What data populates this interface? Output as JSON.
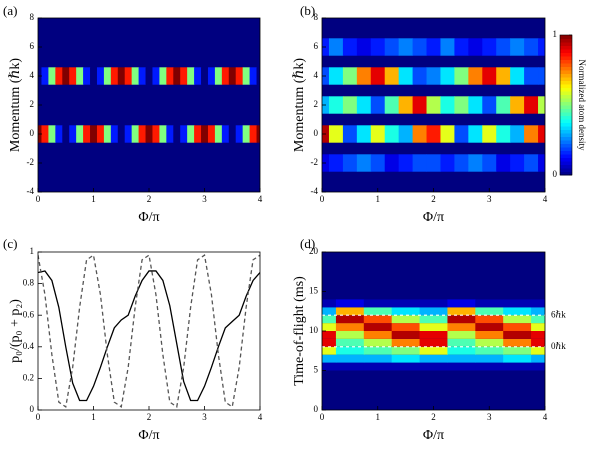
{
  "chart_data": [
    {
      "type": "heatmap",
      "panel_label": "(a)",
      "x_label": "Φ/π",
      "y_label": "Momentum (ℏk)",
      "xlim": [
        0,
        4
      ],
      "xticks": [
        0,
        1,
        2,
        3,
        4
      ],
      "ylim": [
        -4,
        8
      ],
      "yticks": [
        -4,
        -2,
        0,
        2,
        4,
        6,
        8
      ],
      "x": [
        0,
        0.125,
        0.25,
        0.375,
        0.5,
        0.625,
        0.75,
        0.875,
        1,
        1.125,
        1.25,
        1.375,
        1.5,
        1.625,
        1.75,
        1.875,
        2,
        2.125,
        2.25,
        2.375,
        2.5,
        2.625,
        2.75,
        2.875,
        3,
        3.125,
        3.25,
        3.375,
        3.5,
        3.625,
        3.75,
        3.875,
        4
      ],
      "y": [
        0,
        4
      ],
      "z": [
        [
          1,
          0.85,
          0.5,
          0.15,
          0,
          0.15,
          0.5,
          0.85,
          1,
          0.85,
          0.5,
          0.15,
          0,
          0.15,
          0.5,
          0.85,
          1,
          0.85,
          0.5,
          0.15,
          0,
          0.15,
          0.5,
          0.85,
          1,
          0.85,
          0.5,
          0.15,
          0,
          0.15,
          0.5,
          0.85,
          1
        ],
        [
          0,
          0.15,
          0.5,
          0.85,
          1,
          0.85,
          0.5,
          0.15,
          0,
          0.15,
          0.5,
          0.85,
          1,
          0.85,
          0.5,
          0.15,
          0,
          0.15,
          0.5,
          0.85,
          1,
          0.85,
          0.5,
          0.15,
          0,
          0.15,
          0.5,
          0.85,
          1,
          0.85,
          0.5,
          0.15,
          0
        ]
      ],
      "zlim": [
        0,
        1
      ],
      "colormap": "jet"
    },
    {
      "type": "heatmap",
      "panel_label": "(b)",
      "x_label": "Φ/π",
      "y_label": "Momentum (ℏk)",
      "xlim": [
        0,
        4
      ],
      "xticks": [
        0,
        1,
        2,
        3,
        4
      ],
      "ylim": [
        -4,
        8
      ],
      "yticks": [
        -4,
        -2,
        0,
        2,
        4,
        6,
        8
      ],
      "x": [
        0,
        0.25,
        0.5,
        0.75,
        1,
        1.25,
        1.5,
        1.75,
        2,
        2.25,
        2.5,
        2.75,
        3,
        3.25,
        3.5,
        3.75,
        4
      ],
      "y": [
        -2,
        0,
        2,
        4,
        6
      ],
      "z": [
        [
          0.1,
          0.15,
          0.2,
          0.25,
          0.2,
          0.1,
          0.15,
          0.2,
          0.2,
          0.15,
          0.2,
          0.25,
          0.2,
          0.1,
          0.15,
          0.2,
          0.1
        ],
        [
          0.95,
          0.6,
          0.2,
          0.35,
          0.6,
          0.4,
          0.3,
          0.75,
          0.85,
          0.6,
          0.2,
          0.35,
          0.6,
          0.4,
          0.3,
          0.75,
          0.9
        ],
        [
          0.3,
          0.4,
          0.5,
          0.35,
          0.2,
          0.45,
          0.7,
          0.9,
          0.55,
          0.4,
          0.5,
          0.35,
          0.2,
          0.45,
          0.7,
          0.9,
          0.55
        ],
        [
          0.2,
          0.35,
          0.5,
          0.75,
          0.9,
          0.7,
          0.35,
          0.2,
          0.25,
          0.35,
          0.5,
          0.75,
          0.9,
          0.7,
          0.35,
          0.2,
          0.2
        ],
        [
          0.15,
          0.25,
          0.15,
          0.1,
          0.15,
          0.2,
          0.25,
          0.2,
          0.15,
          0.25,
          0.15,
          0.1,
          0.15,
          0.2,
          0.25,
          0.2,
          0.15
        ]
      ],
      "zlim": [
        0,
        1
      ],
      "colormap": "jet",
      "colorbar": {
        "label": "Normalized atom density",
        "lim": [
          0,
          1
        ],
        "ticks": [
          0,
          1
        ]
      }
    },
    {
      "type": "line",
      "panel_label": "(c)",
      "x_label": "Φ/π",
      "y_label": "p₀/(p₀ + p₂)",
      "xlim": [
        0,
        4
      ],
      "xticks": [
        0,
        1,
        2,
        3,
        4
      ],
      "ylim": [
        0,
        1
      ],
      "yticks": [
        0,
        0.2,
        0.4,
        0.6,
        0.8,
        1
      ],
      "x": [
        0,
        0.125,
        0.25,
        0.375,
        0.5,
        0.625,
        0.75,
        0.875,
        1,
        1.125,
        1.25,
        1.375,
        1.5,
        1.625,
        1.75,
        1.875,
        2,
        2.125,
        2.25,
        2.375,
        2.5,
        2.625,
        2.75,
        2.875,
        3,
        3.125,
        3.25,
        3.375,
        3.5,
        3.625,
        3.75,
        3.875,
        4
      ],
      "series": [
        {
          "color": "#000000",
          "style": "solid",
          "values": [
            0.87,
            0.88,
            0.82,
            0.65,
            0.4,
            0.17,
            0.06,
            0.06,
            0.15,
            0.27,
            0.4,
            0.52,
            0.57,
            0.6,
            0.72,
            0.82,
            0.88,
            0.88,
            0.82,
            0.66,
            0.42,
            0.18,
            0.06,
            0.06,
            0.15,
            0.27,
            0.4,
            0.52,
            0.56,
            0.6,
            0.72,
            0.82,
            0.87
          ]
        },
        {
          "color": "#555555",
          "style": "dashed",
          "values": [
            0.98,
            0.73,
            0.35,
            0.05,
            0.02,
            0.27,
            0.65,
            0.95,
            0.98,
            0.73,
            0.35,
            0.05,
            0.02,
            0.27,
            0.65,
            0.95,
            0.98,
            0.73,
            0.35,
            0.05,
            0.02,
            0.27,
            0.65,
            0.95,
            0.98,
            0.73,
            0.35,
            0.05,
            0.02,
            0.27,
            0.65,
            0.95,
            0.98
          ]
        }
      ]
    },
    {
      "type": "heatmap",
      "panel_label": "(d)",
      "x_label": "Φ/π",
      "y_label": "Time-of-flight (ms)",
      "xlim": [
        0,
        4
      ],
      "xticks": [
        0,
        1,
        2,
        3,
        4
      ],
      "ylim": [
        0,
        20
      ],
      "yticks": [
        0,
        5,
        10,
        15,
        20
      ],
      "x": [
        0,
        0.5,
        1,
        1.5,
        2,
        2.5,
        3,
        3.5,
        4
      ],
      "y": [
        5.5,
        6.5,
        7.5,
        8.5,
        9.5,
        10.5,
        11.5,
        12.5,
        13.5
      ],
      "z": [
        [
          0.05,
          0.05,
          0.05,
          0.05,
          0.05,
          0.05,
          0.05,
          0.05,
          0.05
        ],
        [
          0.3,
          0.3,
          0.3,
          0.35,
          0.3,
          0.3,
          0.3,
          0.35,
          0.3
        ],
        [
          0.6,
          0.4,
          0.45,
          0.5,
          0.6,
          0.4,
          0.45,
          0.5,
          0.6
        ],
        [
          0.9,
          0.45,
          0.55,
          0.75,
          0.9,
          0.45,
          0.55,
          0.75,
          0.9
        ],
        [
          0.9,
          0.55,
          0.75,
          0.95,
          0.9,
          0.55,
          0.75,
          0.95,
          0.9
        ],
        [
          0.6,
          0.75,
          0.95,
          0.8,
          0.6,
          0.75,
          0.95,
          0.8,
          0.6
        ],
        [
          0.45,
          0.95,
          0.8,
          0.55,
          0.45,
          0.95,
          0.8,
          0.55,
          0.45
        ],
        [
          0.3,
          0.7,
          0.45,
          0.35,
          0.3,
          0.7,
          0.45,
          0.35,
          0.3
        ],
        [
          0.05,
          0.1,
          0.05,
          0.05,
          0.05,
          0.1,
          0.05,
          0.05,
          0.05
        ]
      ],
      "zlim": [
        0,
        1
      ],
      "colormap": "jet",
      "annotations": [
        {
          "text": "6ℏk",
          "y": 12
        },
        {
          "text": "0ℏk",
          "y": 8
        }
      ]
    }
  ]
}
